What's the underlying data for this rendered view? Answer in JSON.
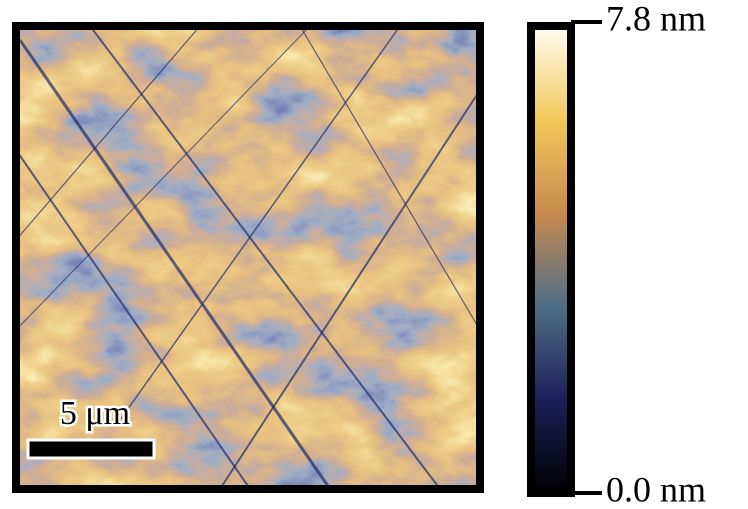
{
  "image": {
    "scale_bar": {
      "label": "5 μm"
    }
  },
  "colorbar": {
    "lim": [
      0.0,
      7.8
    ],
    "ticks": [
      {
        "value": 0.0,
        "label": "0.0 nm"
      },
      {
        "value": 7.8,
        "label": "7.8 nm"
      }
    ]
  }
}
